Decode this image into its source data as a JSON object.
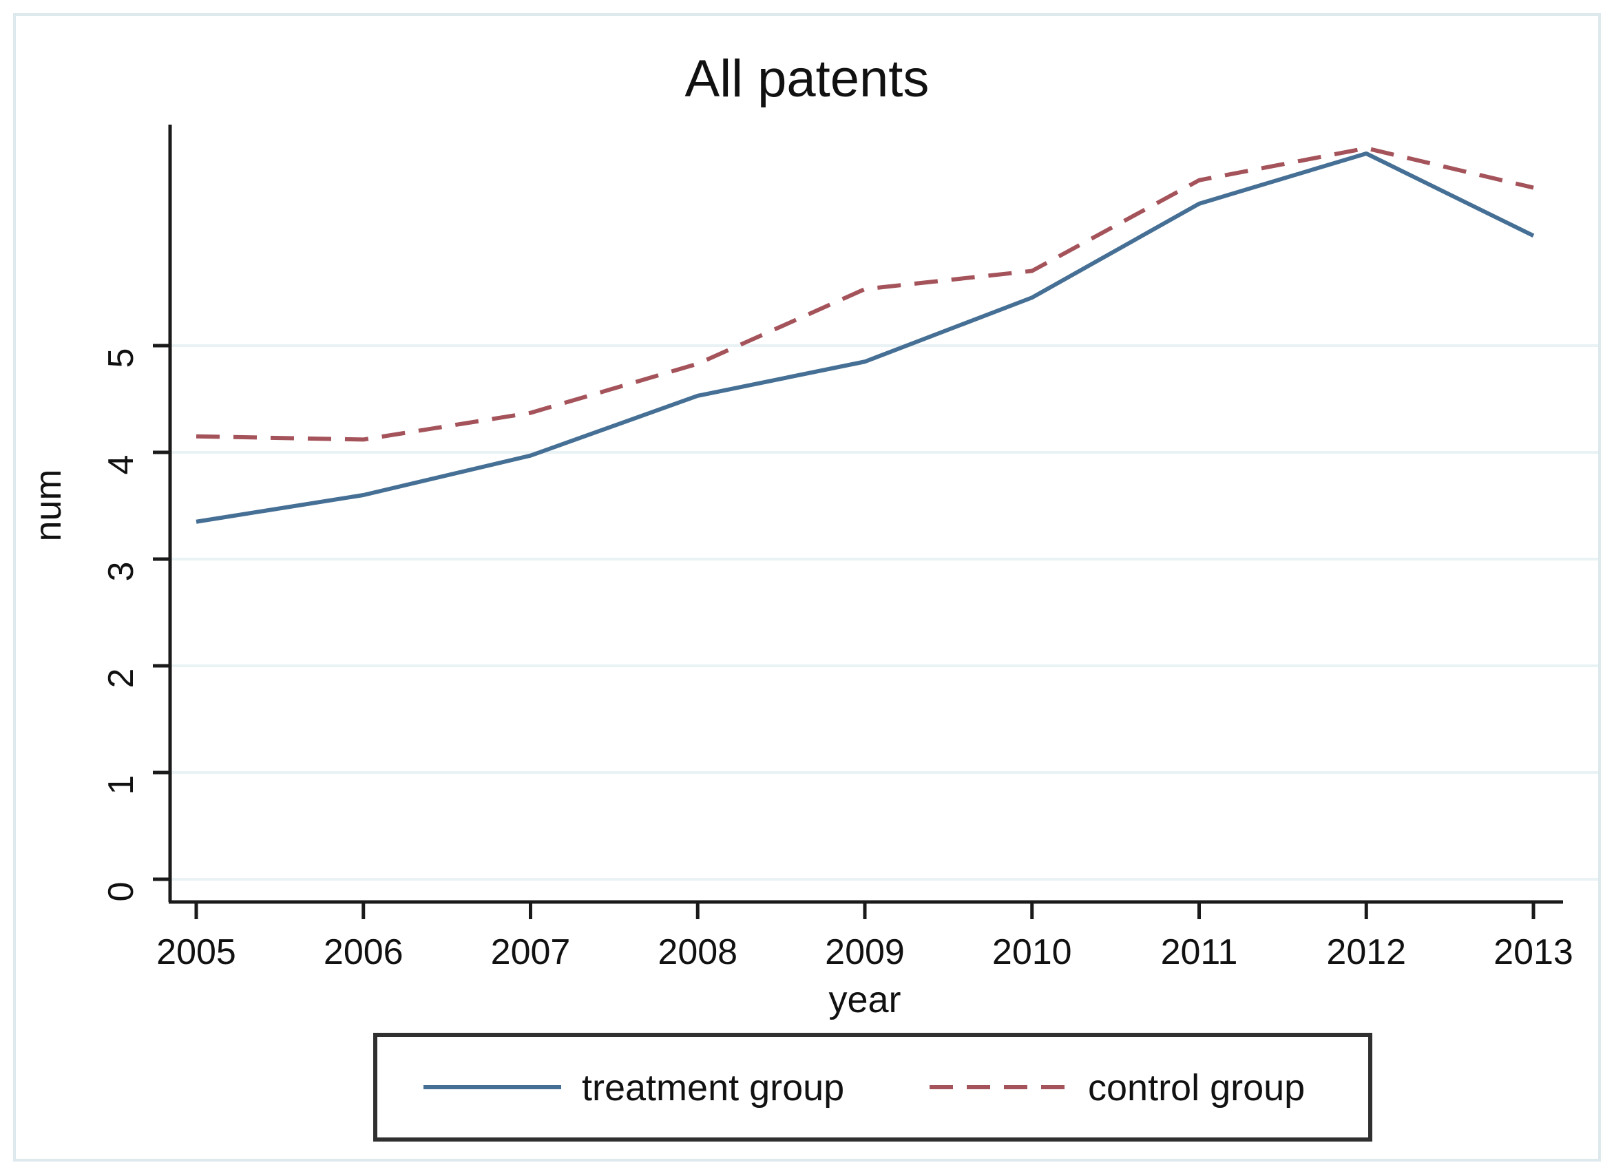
{
  "chart_data": {
    "type": "line",
    "title": "All patents",
    "xlabel": "year",
    "ylabel": "num",
    "x": [
      2005,
      2006,
      2007,
      2008,
      2009,
      2010,
      2011,
      2012,
      2013
    ],
    "series": [
      {
        "name": "treatment group",
        "style": "solid",
        "color": "#456f94",
        "values": [
          3.35,
          3.6,
          3.97,
          4.53,
          4.85,
          5.45,
          6.33,
          6.8,
          6.03
        ]
      },
      {
        "name": "control group",
        "style": "dashed",
        "color": "#a5535a",
        "values": [
          4.15,
          4.12,
          4.37,
          4.83,
          5.53,
          5.7,
          6.55,
          6.85,
          6.48
        ]
      }
    ],
    "yticks": [
      0,
      1,
      2,
      3,
      4,
      5
    ],
    "ylim": [
      0,
      7.1
    ],
    "grid": true,
    "legend_position": "bottom",
    "colors": {
      "title": "#26355c",
      "axis": "#1a1a1a",
      "gridline": "#e9f2f4",
      "frame": "#dde9ed",
      "plot_background": "#ffffff"
    }
  }
}
